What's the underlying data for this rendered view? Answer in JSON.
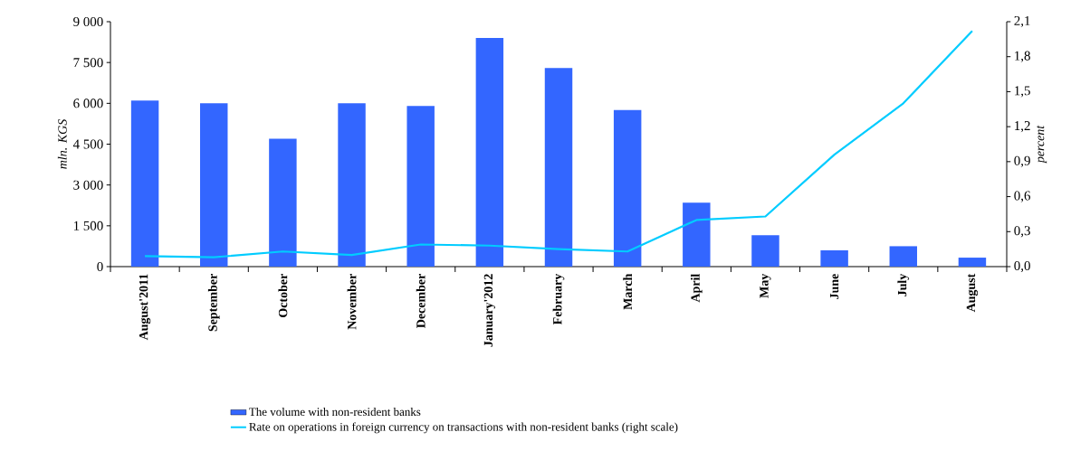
{
  "chart_data": {
    "type": "bar",
    "ylabel": "mln. KGS",
    "y2label": "percent",
    "categories": [
      "August'2011",
      "September",
      "October",
      "November",
      "December",
      "January'2012",
      "February",
      "March",
      "April",
      "May",
      "June",
      "July",
      "August"
    ],
    "series": [
      {
        "name": "The volume with non-resident banks",
        "color": "#3366ff",
        "values": [
          6100,
          6000,
          4700,
          6000,
          5900,
          8400,
          7300,
          5750,
          2350,
          1150,
          600,
          750,
          330
        ]
      },
      {
        "name": "Rate on operations in foreign currency on transactions with non-resident banks (right scale)",
        "type": "line",
        "axis": "y2",
        "color": "#00ccff",
        "marker": "none",
        "values": [
          0.09,
          0.08,
          0.13,
          0.1,
          0.19,
          0.18,
          0.15,
          0.13,
          0.4,
          0.43,
          0.96,
          1.4,
          2.02
        ]
      }
    ],
    "ylim": [
      0,
      9000
    ],
    "yticks": [
      0,
      {
        "value": 1500,
        "label": "1 500"
      },
      {
        "value": 3000,
        "label": "3 000"
      },
      {
        "value": 4500,
        "label": "4 500"
      },
      {
        "value": 6000,
        "label": "6 000"
      },
      {
        "value": 7500,
        "label": "7 500"
      },
      {
        "value": 9000,
        "label": "9 000"
      }
    ],
    "y2lim": [
      0,
      2.1
    ],
    "y2ticks": [
      {
        "value": 0,
        "label": "0,0"
      },
      {
        "value": 0.3,
        "label": "0,3"
      },
      {
        "value": 0.6,
        "label": "0,6"
      },
      {
        "value": 0.9,
        "label": "0,9"
      },
      {
        "value": 1.2,
        "label": "1,2"
      },
      {
        "value": 1.5,
        "label": "1,5"
      },
      {
        "value": 1.8,
        "label": "1,8"
      },
      {
        "value": 2.1,
        "label": "2,1"
      }
    ],
    "grid": false,
    "legend": "bottom"
  }
}
